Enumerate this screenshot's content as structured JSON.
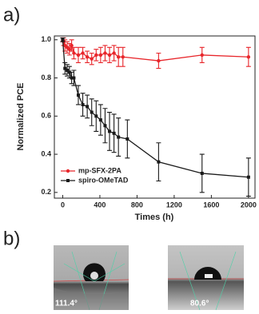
{
  "panels": [
    "a)",
    "b)"
  ],
  "chart_data": {
    "type": "line",
    "x_label": "Times (h)",
    "y_label": "Normalized PCE",
    "xlim": [
      -90,
      2070
    ],
    "xticks": [
      0,
      400,
      800,
      1200,
      1600,
      2000
    ],
    "ylim": [
      0.17,
      1.02
    ],
    "yticks": [
      {
        "value": 0.2,
        "label": "0.2"
      },
      {
        "value": 0.4,
        "label": "0.4"
      },
      {
        "value": 0.6,
        "label": "0.6"
      },
      {
        "value": 0.8,
        "label": "0.8"
      },
      {
        "value": 1,
        "label": "1.0"
      }
    ],
    "legend": "lower-left",
    "series": [
      {
        "name": "mp-SFX-2PA",
        "color": "#e8262b",
        "marker": "circle",
        "x": [
          0,
          10,
          24,
          48,
          72,
          96,
          120,
          168,
          216,
          264,
          312,
          360,
          408,
          456,
          504,
          552,
          600,
          648,
          1032,
          1500,
          2000
        ],
        "values": [
          1.0,
          0.99,
          0.97,
          0.96,
          0.95,
          0.97,
          0.93,
          0.92,
          0.93,
          0.91,
          0.9,
          0.92,
          0.92,
          0.93,
          0.92,
          0.93,
          0.91,
          0.91,
          0.89,
          0.92,
          0.91
        ],
        "errors": [
          0.01,
          0.02,
          0.03,
          0.03,
          0.03,
          0.03,
          0.03,
          0.04,
          0.03,
          0.03,
          0.03,
          0.03,
          0.04,
          0.04,
          0.04,
          0.04,
          0.05,
          0.05,
          0.04,
          0.04,
          0.05
        ]
      },
      {
        "name": "spiro-OMeTAD",
        "color": "#1a1a1a",
        "marker": "square",
        "x": [
          0,
          24,
          48,
          72,
          96,
          120,
          168,
          216,
          264,
          312,
          360,
          408,
          456,
          504,
          552,
          600,
          696,
          1032,
          1500,
          2000
        ],
        "values": [
          1.0,
          0.85,
          0.84,
          0.83,
          0.8,
          0.8,
          0.71,
          0.66,
          0.65,
          0.62,
          0.6,
          0.58,
          0.55,
          0.52,
          0.51,
          0.49,
          0.48,
          0.36,
          0.3,
          0.28
        ],
        "errors": [
          0.01,
          0.03,
          0.03,
          0.03,
          0.03,
          0.04,
          0.05,
          0.06,
          0.06,
          0.07,
          0.08,
          0.08,
          0.09,
          0.1,
          0.1,
          0.1,
          0.1,
          0.1,
          0.1,
          0.1
        ]
      }
    ]
  },
  "photos": [
    {
      "angle": "111.4°"
    },
    {
      "angle": "80.6°"
    }
  ]
}
